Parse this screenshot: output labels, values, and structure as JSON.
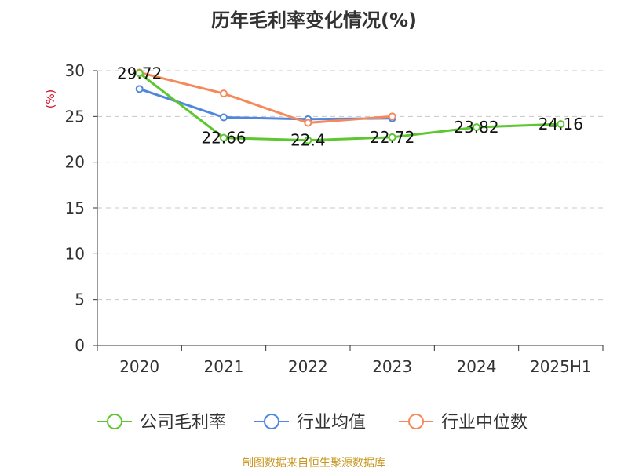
{
  "chart_data": {
    "type": "line",
    "title": "历年毛利率变化情况(%)",
    "ylabel": "(%)",
    "xlabel": "",
    "categories": [
      "2020",
      "2021",
      "2022",
      "2023",
      "2024",
      "2025H1"
    ],
    "ylim": [
      0,
      30
    ],
    "yticks": [
      "0",
      "5",
      "10",
      "15",
      "20",
      "25",
      "30"
    ],
    "grid": true,
    "legend_position": "bottom",
    "series": [
      {
        "name": "公司毛利率",
        "color": "#5cc72f",
        "values": [
          29.72,
          22.66,
          22.4,
          22.72,
          23.82,
          24.16
        ],
        "labels": [
          "29.72",
          "22.66",
          "22.4",
          "22.72",
          "23.82",
          "24.16"
        ]
      },
      {
        "name": "行业均值",
        "color": "#4f86de",
        "values": [
          28.0,
          24.9,
          24.7,
          24.8,
          null,
          null
        ]
      },
      {
        "name": "行业中位数",
        "color": "#f5895a",
        "values": [
          29.8,
          27.5,
          24.3,
          25.0,
          null,
          null
        ]
      }
    ],
    "source": "制图数据来自恒生聚源数据库"
  }
}
